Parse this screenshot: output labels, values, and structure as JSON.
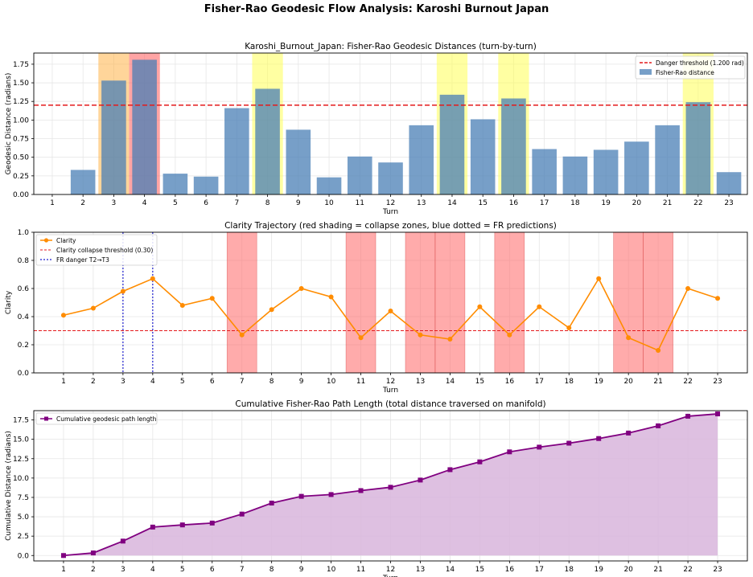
{
  "figure": {
    "title": "Fisher-Rao Geodesic Flow Analysis: Karoshi Burnout Japan"
  },
  "chart_data": [
    {
      "type": "bar",
      "title": "Karoshi_Burnout_Japan: Fisher-Rao Geodesic Distances (turn-by-turn)",
      "xlabel": "Turn",
      "ylabel": "Geodesic Distance (radians)",
      "categories": [
        "1",
        "2",
        "3",
        "4",
        "5",
        "6",
        "7",
        "8",
        "9",
        "10",
        "11",
        "12",
        "13",
        "14",
        "15",
        "16",
        "17",
        "18",
        "19",
        "20",
        "21",
        "22",
        "23"
      ],
      "values": [
        0,
        0.33,
        1.53,
        1.81,
        0.28,
        0.24,
        1.16,
        1.42,
        0.87,
        0.23,
        0.51,
        0.43,
        0.93,
        1.34,
        1.01,
        1.29,
        0.61,
        0.51,
        0.6,
        0.71,
        0.93,
        1.24,
        0.3
      ],
      "ylim": [
        0,
        1.9
      ],
      "yticks": [
        "0.00",
        "0.25",
        "0.50",
        "0.75",
        "1.00",
        "1.25",
        "1.50",
        "1.75"
      ],
      "threshold": 1.2,
      "highlights": [
        {
          "turn": 3,
          "color": "#ffb347"
        },
        {
          "turn": 4,
          "color": "#ff5a5a"
        },
        {
          "turn": 8,
          "color": "#ffff55"
        },
        {
          "turn": 14,
          "color": "#ffff55"
        },
        {
          "turn": 16,
          "color": "#ffff55"
        },
        {
          "turn": 22,
          "color": "#ffff55"
        }
      ],
      "colors": {
        "bar": "#4a7fb5",
        "threshold": "#e41a1c"
      },
      "legend": {
        "position": "top-right",
        "entries": [
          "Danger threshold (1.200 rad)",
          "Fisher-Rao distance"
        ]
      },
      "grid": true
    },
    {
      "type": "line",
      "title": "Clarity Trajectory (red shading = collapse zones, blue dotted = FR predictions)",
      "xlabel": "Turn",
      "ylabel": "Clarity",
      "x": [
        1,
        2,
        3,
        4,
        5,
        6,
        7,
        8,
        9,
        10,
        11,
        12,
        13,
        14,
        15,
        16,
        17,
        18,
        19,
        20,
        21,
        22,
        23
      ],
      "values": [
        0.41,
        0.46,
        0.58,
        0.67,
        0.48,
        0.53,
        0.27,
        0.45,
        0.6,
        0.54,
        0.25,
        0.44,
        0.27,
        0.24,
        0.47,
        0.27,
        0.47,
        0.32,
        0.67,
        0.25,
        0.16,
        0.6,
        0.53
      ],
      "ylim": [
        0,
        1.0
      ],
      "yticks": [
        "0.0",
        "0.2",
        "0.4",
        "0.6",
        "0.8",
        "1.0"
      ],
      "threshold": 0.3,
      "collapse_turns": [
        7,
        11,
        13,
        14,
        16,
        20,
        21
      ],
      "fr_prediction_turns": [
        3,
        4
      ],
      "colors": {
        "line": "#ff8c00",
        "threshold": "#e41a1c",
        "shade": "#ff6666",
        "prediction": "#1f1fd0"
      },
      "legend": {
        "position": "top-left",
        "entries": [
          "Clarity",
          "Clarity collapse threshold (0.30)",
          "FR danger T2→T3"
        ]
      },
      "grid": true
    },
    {
      "type": "area",
      "title": "Cumulative Fisher-Rao Path Length (total distance traversed on manifold)",
      "xlabel": "Turn",
      "ylabel": "Cumulative Distance (radians)",
      "x": [
        1,
        2,
        3,
        4,
        5,
        6,
        7,
        8,
        9,
        10,
        11,
        12,
        13,
        14,
        15,
        16,
        17,
        18,
        19,
        20,
        21,
        22,
        23
      ],
      "values": [
        0.0,
        0.33,
        1.86,
        3.67,
        3.95,
        4.19,
        5.35,
        6.77,
        7.64,
        7.87,
        8.38,
        8.81,
        9.74,
        11.08,
        12.09,
        13.38,
        13.99,
        14.5,
        15.1,
        15.81,
        16.74,
        17.98,
        18.28
      ],
      "ylim": [
        -0.7,
        18.7
      ],
      "yticks": [
        "0.0",
        "2.5",
        "5.0",
        "7.5",
        "10.0",
        "12.5",
        "15.0",
        "17.5"
      ],
      "colors": {
        "line": "#800080",
        "fill": "#d8b5dc"
      },
      "legend": {
        "position": "top-left",
        "entries": [
          "Cumulative geodesic path length"
        ]
      },
      "grid": true
    }
  ]
}
